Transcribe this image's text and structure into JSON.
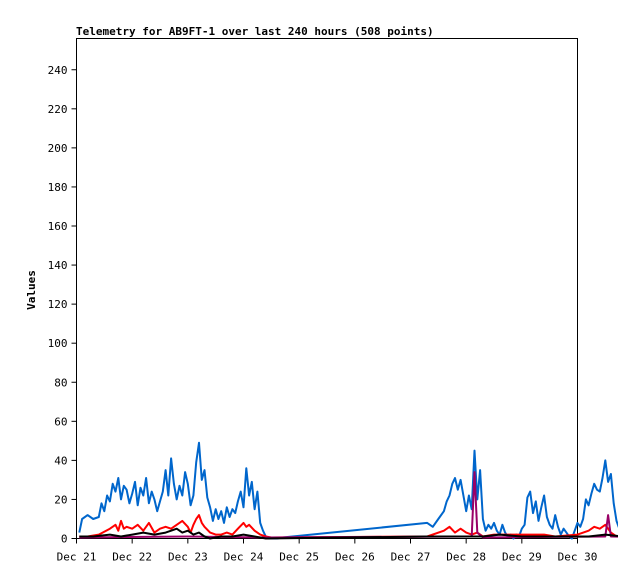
{
  "chart_data": {
    "type": "line",
    "title": "Telemetry for AB9FT-1 over last 240 hours (508 points)",
    "xlabel": "",
    "ylabel": "Values",
    "ylim": [
      0,
      256
    ],
    "yticks": [
      0,
      20,
      40,
      60,
      80,
      100,
      120,
      140,
      160,
      180,
      200,
      220,
      240
    ],
    "xlim": [
      "Dec 21",
      "Dec 30"
    ],
    "xticks": [
      "Dec 21",
      "Dec 22",
      "Dec 23",
      "Dec 24",
      "Dec 25",
      "Dec 26",
      "Dec 27",
      "Dec 28",
      "Dec 29",
      "Dec 30"
    ],
    "grid": false,
    "legend": false,
    "series": [
      {
        "color": "#0066cc",
        "points": [
          [
            0.05,
            3
          ],
          [
            0.1,
            10
          ],
          [
            0.2,
            12
          ],
          [
            0.3,
            10
          ],
          [
            0.4,
            11
          ],
          [
            0.45,
            18
          ],
          [
            0.5,
            14
          ],
          [
            0.55,
            22
          ],
          [
            0.6,
            19
          ],
          [
            0.65,
            28
          ],
          [
            0.7,
            24
          ],
          [
            0.75,
            31
          ],
          [
            0.8,
            20
          ],
          [
            0.85,
            27
          ],
          [
            0.9,
            25
          ],
          [
            0.95,
            18
          ],
          [
            1.0,
            23
          ],
          [
            1.05,
            29
          ],
          [
            1.1,
            17
          ],
          [
            1.15,
            26
          ],
          [
            1.2,
            22
          ],
          [
            1.25,
            31
          ],
          [
            1.3,
            18
          ],
          [
            1.35,
            24
          ],
          [
            1.4,
            20
          ],
          [
            1.45,
            14
          ],
          [
            1.5,
            19
          ],
          [
            1.55,
            24
          ],
          [
            1.6,
            35
          ],
          [
            1.65,
            22
          ],
          [
            1.7,
            41
          ],
          [
            1.75,
            28
          ],
          [
            1.8,
            20
          ],
          [
            1.85,
            27
          ],
          [
            1.9,
            22
          ],
          [
            1.95,
            34
          ],
          [
            2.0,
            28
          ],
          [
            2.05,
            17
          ],
          [
            2.1,
            22
          ],
          [
            2.15,
            39
          ],
          [
            2.2,
            49
          ],
          [
            2.25,
            30
          ],
          [
            2.3,
            35
          ],
          [
            2.35,
            21
          ],
          [
            2.4,
            16
          ],
          [
            2.45,
            9
          ],
          [
            2.5,
            15
          ],
          [
            2.55,
            10
          ],
          [
            2.6,
            14
          ],
          [
            2.65,
            8
          ],
          [
            2.7,
            16
          ],
          [
            2.75,
            11
          ],
          [
            2.8,
            15
          ],
          [
            2.85,
            13
          ],
          [
            2.9,
            19
          ],
          [
            2.95,
            24
          ],
          [
            3.0,
            16
          ],
          [
            3.05,
            36
          ],
          [
            3.1,
            22
          ],
          [
            3.15,
            29
          ],
          [
            3.2,
            15
          ],
          [
            3.25,
            24
          ],
          [
            3.3,
            8
          ],
          [
            3.35,
            4
          ],
          [
            3.4,
            1
          ],
          [
            3.45,
            0
          ],
          [
            3.6,
            0
          ],
          [
            3.7,
            0.5
          ],
          [
            6.3,
            8
          ],
          [
            6.4,
            6
          ],
          [
            6.5,
            10
          ],
          [
            6.6,
            14
          ],
          [
            6.65,
            19
          ],
          [
            6.7,
            22
          ],
          [
            6.75,
            28
          ],
          [
            6.8,
            31
          ],
          [
            6.85,
            25
          ],
          [
            6.9,
            30
          ],
          [
            6.95,
            22
          ],
          [
            7.0,
            14
          ],
          [
            7.05,
            22
          ],
          [
            7.1,
            15
          ],
          [
            7.15,
            45
          ],
          [
            7.2,
            20
          ],
          [
            7.25,
            35
          ],
          [
            7.3,
            10
          ],
          [
            7.35,
            4
          ],
          [
            7.4,
            7
          ],
          [
            7.45,
            5
          ],
          [
            7.5,
            8
          ],
          [
            7.55,
            4
          ],
          [
            7.6,
            2
          ],
          [
            7.65,
            7
          ],
          [
            7.7,
            3
          ],
          [
            7.75,
            1
          ],
          [
            7.8,
            2
          ],
          [
            7.85,
            0
          ],
          [
            7.9,
            2
          ],
          [
            7.95,
            1
          ],
          [
            8.0,
            5
          ],
          [
            8.05,
            7
          ],
          [
            8.1,
            21
          ],
          [
            8.15,
            24
          ],
          [
            8.2,
            13
          ],
          [
            8.25,
            19
          ],
          [
            8.3,
            9
          ],
          [
            8.35,
            16
          ],
          [
            8.4,
            22
          ],
          [
            8.45,
            11
          ],
          [
            8.5,
            7
          ],
          [
            8.55,
            5
          ],
          [
            8.6,
            12
          ],
          [
            8.65,
            6
          ],
          [
            8.7,
            2
          ],
          [
            8.75,
            5
          ],
          [
            8.8,
            3
          ],
          [
            8.85,
            1
          ],
          [
            8.9,
            0
          ],
          [
            8.95,
            4
          ],
          [
            9.0,
            8
          ],
          [
            9.05,
            6
          ],
          [
            9.1,
            10
          ],
          [
            9.15,
            20
          ],
          [
            9.2,
            17
          ],
          [
            9.25,
            23
          ],
          [
            9.3,
            28
          ],
          [
            9.35,
            25
          ],
          [
            9.4,
            24
          ],
          [
            9.45,
            31
          ],
          [
            9.5,
            40
          ],
          [
            9.55,
            29
          ],
          [
            9.6,
            33
          ],
          [
            9.65,
            18
          ],
          [
            9.7,
            9
          ],
          [
            9.75,
            5
          ],
          [
            9.8,
            2
          ],
          [
            9.85,
            5
          ],
          [
            9.9,
            3
          ],
          [
            9.95,
            6
          ],
          [
            10.0,
            2
          ],
          [
            10.05,
            8
          ],
          [
            10.1,
            4
          ],
          [
            10.15,
            2
          ],
          [
            10.2,
            8
          ],
          [
            10.25,
            4
          ],
          [
            10.3,
            5
          ],
          [
            10.35,
            10
          ],
          [
            10.4,
            16
          ],
          [
            10.45,
            7
          ],
          [
            10.5,
            18
          ],
          [
            10.55,
            14
          ],
          [
            10.6,
            20
          ]
        ]
      },
      {
        "color": "#ff0000",
        "points": [
          [
            0.05,
            1
          ],
          [
            0.2,
            1
          ],
          [
            0.4,
            2
          ],
          [
            0.6,
            5
          ],
          [
            0.7,
            7
          ],
          [
            0.75,
            4
          ],
          [
            0.8,
            9
          ],
          [
            0.85,
            5
          ],
          [
            0.9,
            6
          ],
          [
            1.0,
            5
          ],
          [
            1.1,
            7
          ],
          [
            1.2,
            4
          ],
          [
            1.3,
            8
          ],
          [
            1.4,
            3
          ],
          [
            1.5,
            5
          ],
          [
            1.6,
            6
          ],
          [
            1.7,
            5
          ],
          [
            1.8,
            7
          ],
          [
            1.9,
            9
          ],
          [
            2.0,
            6
          ],
          [
            2.05,
            3
          ],
          [
            2.1,
            7
          ],
          [
            2.15,
            10
          ],
          [
            2.2,
            12
          ],
          [
            2.25,
            8
          ],
          [
            2.3,
            6
          ],
          [
            2.4,
            3
          ],
          [
            2.5,
            2
          ],
          [
            2.6,
            2
          ],
          [
            2.7,
            3
          ],
          [
            2.8,
            2
          ],
          [
            2.9,
            5
          ],
          [
            3.0,
            8
          ],
          [
            3.05,
            6
          ],
          [
            3.1,
            7
          ],
          [
            3.2,
            4
          ],
          [
            3.3,
            2
          ],
          [
            3.4,
            1
          ],
          [
            3.5,
            0.5
          ],
          [
            6.3,
            1
          ],
          [
            6.6,
            4
          ],
          [
            6.7,
            6
          ],
          [
            6.8,
            3
          ],
          [
            6.9,
            5
          ],
          [
            7.0,
            3
          ],
          [
            7.1,
            2
          ],
          [
            7.2,
            3
          ],
          [
            7.3,
            1
          ],
          [
            7.5,
            2
          ],
          [
            8.0,
            2
          ],
          [
            8.2,
            2
          ],
          [
            8.4,
            2
          ],
          [
            8.6,
            1
          ],
          [
            9.0,
            2
          ],
          [
            9.2,
            4
          ],
          [
            9.3,
            6
          ],
          [
            9.4,
            5
          ],
          [
            9.5,
            7
          ],
          [
            9.6,
            3
          ],
          [
            9.7,
            1
          ],
          [
            10.0,
            1
          ],
          [
            10.2,
            2
          ],
          [
            10.4,
            3
          ],
          [
            10.6,
            2
          ]
        ]
      },
      {
        "color": "#990066",
        "points": [
          [
            0.05,
            0.5
          ],
          [
            2.0,
            1
          ],
          [
            3.4,
            0.5
          ],
          [
            7.1,
            1
          ],
          [
            7.15,
            34
          ],
          [
            7.2,
            3
          ],
          [
            7.3,
            0.5
          ],
          [
            9.5,
            1
          ],
          [
            9.55,
            12
          ],
          [
            9.6,
            1
          ],
          [
            10.6,
            0.5
          ]
        ]
      },
      {
        "color": "#000000",
        "points": [
          [
            0.05,
            1
          ],
          [
            0.3,
            1
          ],
          [
            0.6,
            2
          ],
          [
            0.8,
            1
          ],
          [
            1.0,
            2
          ],
          [
            1.2,
            3
          ],
          [
            1.4,
            2
          ],
          [
            1.6,
            3
          ],
          [
            1.7,
            4
          ],
          [
            1.8,
            5
          ],
          [
            1.9,
            3
          ],
          [
            2.0,
            4
          ],
          [
            2.1,
            2
          ],
          [
            2.2,
            3
          ],
          [
            2.3,
            1
          ],
          [
            2.4,
            0
          ],
          [
            2.6,
            1
          ],
          [
            2.8,
            1
          ],
          [
            3.0,
            2
          ],
          [
            3.2,
            1
          ],
          [
            3.4,
            0
          ],
          [
            6.3,
            1
          ],
          [
            6.8,
            1
          ],
          [
            7.0,
            1
          ],
          [
            7.3,
            1
          ],
          [
            7.6,
            2
          ],
          [
            8.0,
            1
          ],
          [
            8.4,
            1
          ],
          [
            8.8,
            1
          ],
          [
            9.2,
            1
          ],
          [
            9.5,
            2
          ],
          [
            9.8,
            1
          ],
          [
            10.2,
            1
          ],
          [
            10.6,
            1
          ]
        ]
      }
    ]
  }
}
